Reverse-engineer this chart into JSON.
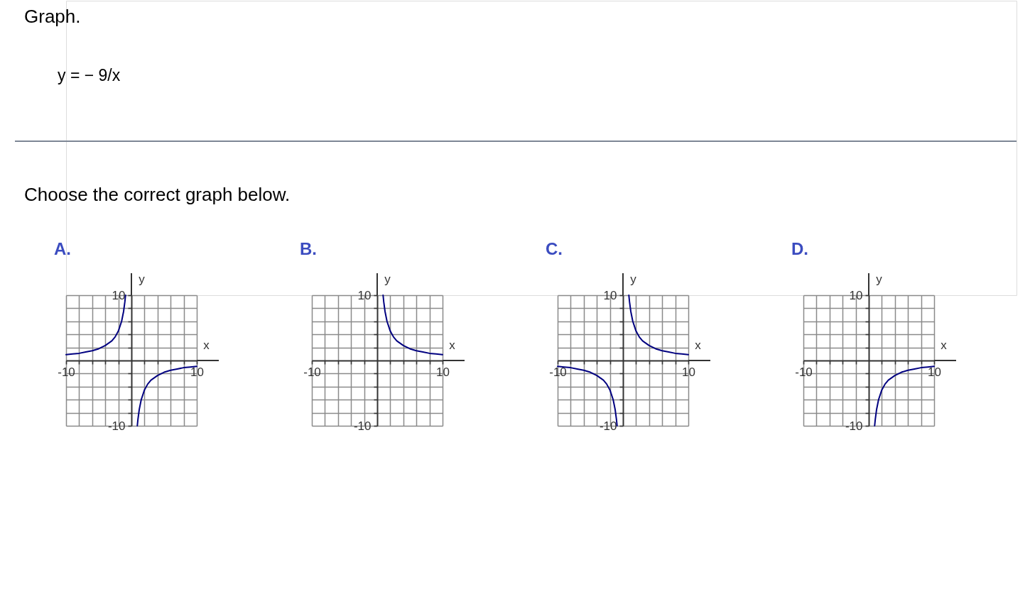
{
  "chart_data": [
    {
      "type": "other",
      "title": "Graph.",
      "annotations": [
        "y = − 9/x",
        "Choose the correct graph below."
      ]
    },
    {
      "type": "line",
      "title": "A.",
      "xlabel": "x",
      "ylabel": "y",
      "xlim": [
        -10,
        10
      ],
      "ylim": [
        -10,
        10
      ],
      "xticks": [
        {
          "value": -10,
          "label": "-10"
        },
        {
          "value": -8,
          "label": null
        },
        {
          "value": -6,
          "label": null
        },
        {
          "value": -4,
          "label": null
        },
        {
          "value": -2,
          "label": null
        },
        {
          "value": 2,
          "label": null
        },
        {
          "value": 4,
          "label": null
        },
        {
          "value": 6,
          "label": null
        },
        {
          "value": 8,
          "label": null
        },
        {
          "value": 10,
          "label": "10"
        }
      ],
      "yticks": [
        {
          "value": -10,
          "label": "-10"
        },
        {
          "value": -8,
          "label": null
        },
        {
          "value": -6,
          "label": null
        },
        {
          "value": -4,
          "label": null
        },
        {
          "value": -2,
          "label": null
        },
        {
          "value": 2,
          "label": null
        },
        {
          "value": 4,
          "label": null
        },
        {
          "value": 6,
          "label": null
        },
        {
          "value": 8,
          "label": null
        },
        {
          "value": 10,
          "label": "10"
        }
      ],
      "grid": true,
      "series": [
        {
          "color": "#000080",
          "x": [
            -10,
            -9,
            -8,
            -7,
            -6,
            -5,
            -4,
            -3,
            -2.5,
            -2,
            -1.5,
            -1.2,
            -1,
            -0.9,
            0,
            0.9,
            1,
            1.2,
            1.5,
            2,
            2.5,
            3,
            4,
            5,
            6,
            7,
            8,
            9,
            10
          ],
          "values": [
            0.9,
            1,
            1.1,
            1.3,
            1.5,
            1.8,
            2.3,
            3,
            3.6,
            4.5,
            6,
            7.5,
            9,
            10,
            null,
            -10,
            -9,
            -7.5,
            -6,
            -4.5,
            -3.6,
            -3,
            -2.3,
            -1.8,
            -1.5,
            -1.3,
            -1.1,
            -1,
            -0.9
          ]
        }
      ]
    },
    {
      "type": "line",
      "title": "B.",
      "xlabel": "x",
      "ylabel": "y",
      "xlim": [
        -10,
        10
      ],
      "ylim": [
        -10,
        10
      ],
      "xticks": [
        {
          "value": -10,
          "label": "-10"
        },
        {
          "value": -8,
          "label": null
        },
        {
          "value": -6,
          "label": null
        },
        {
          "value": -4,
          "label": null
        },
        {
          "value": -2,
          "label": null
        },
        {
          "value": 2,
          "label": null
        },
        {
          "value": 4,
          "label": null
        },
        {
          "value": 6,
          "label": null
        },
        {
          "value": 8,
          "label": null
        },
        {
          "value": 10,
          "label": "10"
        }
      ],
      "yticks": [
        {
          "value": -10,
          "label": "-10"
        },
        {
          "value": -8,
          "label": null
        },
        {
          "value": -6,
          "label": null
        },
        {
          "value": -4,
          "label": null
        },
        {
          "value": -2,
          "label": null
        },
        {
          "value": 2,
          "label": null
        },
        {
          "value": 4,
          "label": null
        },
        {
          "value": 6,
          "label": null
        },
        {
          "value": 8,
          "label": null
        },
        {
          "value": 10,
          "label": "10"
        }
      ],
      "grid": true,
      "series": [
        {
          "color": "#000080",
          "x": [
            0.9,
            1,
            1.2,
            1.5,
            2,
            2.5,
            3,
            4,
            5,
            6,
            7,
            8,
            9,
            10
          ],
          "values": [
            10,
            9,
            7.5,
            6,
            4.5,
            3.6,
            3,
            2.3,
            1.8,
            1.5,
            1.3,
            1.1,
            1,
            0.9
          ]
        }
      ]
    },
    {
      "type": "line",
      "title": "C.",
      "xlabel": "x",
      "ylabel": "y",
      "xlim": [
        -10,
        10
      ],
      "ylim": [
        -10,
        10
      ],
      "xticks": [
        {
          "value": -10,
          "label": "-10"
        },
        {
          "value": -8,
          "label": null
        },
        {
          "value": -6,
          "label": null
        },
        {
          "value": -4,
          "label": null
        },
        {
          "value": -2,
          "label": null
        },
        {
          "value": 2,
          "label": null
        },
        {
          "value": 4,
          "label": null
        },
        {
          "value": 6,
          "label": null
        },
        {
          "value": 8,
          "label": null
        },
        {
          "value": 10,
          "label": "10"
        }
      ],
      "yticks": [
        {
          "value": -10,
          "label": "-10"
        },
        {
          "value": -8,
          "label": null
        },
        {
          "value": -6,
          "label": null
        },
        {
          "value": -4,
          "label": null
        },
        {
          "value": -2,
          "label": null
        },
        {
          "value": 2,
          "label": null
        },
        {
          "value": 4,
          "label": null
        },
        {
          "value": 6,
          "label": null
        },
        {
          "value": 8,
          "label": null
        },
        {
          "value": 10,
          "label": "10"
        }
      ],
      "grid": true,
      "series": [
        {
          "color": "#000080",
          "x": [
            -10,
            -9,
            -8,
            -7,
            -6,
            -5,
            -4,
            -3,
            -2.5,
            -2,
            -1.5,
            -1.2,
            -1,
            -0.9,
            0,
            0.9,
            1,
            1.2,
            1.5,
            2,
            2.5,
            3,
            4,
            5,
            6,
            7,
            8,
            9,
            10
          ],
          "values": [
            -0.9,
            -1,
            -1.1,
            -1.3,
            -1.5,
            -1.8,
            -2.3,
            -3,
            -3.6,
            -4.5,
            -6,
            -7.5,
            -9,
            -10,
            null,
            10,
            9,
            7.5,
            6,
            4.5,
            3.6,
            3,
            2.3,
            1.8,
            1.5,
            1.3,
            1.1,
            1,
            0.9
          ]
        }
      ]
    },
    {
      "type": "line",
      "title": "D.",
      "xlabel": "x",
      "ylabel": "y",
      "xlim": [
        -10,
        10
      ],
      "ylim": [
        -10,
        10
      ],
      "xticks": [
        {
          "value": -10,
          "label": "-10"
        },
        {
          "value": -8,
          "label": null
        },
        {
          "value": -6,
          "label": null
        },
        {
          "value": -4,
          "label": null
        },
        {
          "value": -2,
          "label": null
        },
        {
          "value": 2,
          "label": null
        },
        {
          "value": 4,
          "label": null
        },
        {
          "value": 6,
          "label": null
        },
        {
          "value": 8,
          "label": null
        },
        {
          "value": 10,
          "label": "10"
        }
      ],
      "yticks": [
        {
          "value": -10,
          "label": "-10"
        },
        {
          "value": -8,
          "label": null
        },
        {
          "value": -6,
          "label": null
        },
        {
          "value": -4,
          "label": null
        },
        {
          "value": -2,
          "label": null
        },
        {
          "value": 2,
          "label": null
        },
        {
          "value": 4,
          "label": null
        },
        {
          "value": 6,
          "label": null
        },
        {
          "value": 8,
          "label": null
        },
        {
          "value": 10,
          "label": "10"
        }
      ],
      "grid": true,
      "series": [
        {
          "color": "#000080",
          "x": [
            0.9,
            1,
            1.2,
            1.5,
            2,
            2.5,
            3,
            4,
            5,
            6,
            7,
            8,
            9,
            10
          ],
          "values": [
            -10,
            -9,
            -7.5,
            -6,
            -4.5,
            -3.6,
            -3,
            -2.3,
            -1.8,
            -1.5,
            -1.3,
            -1.1,
            -1,
            -0.9
          ]
        }
      ]
    }
  ]
}
